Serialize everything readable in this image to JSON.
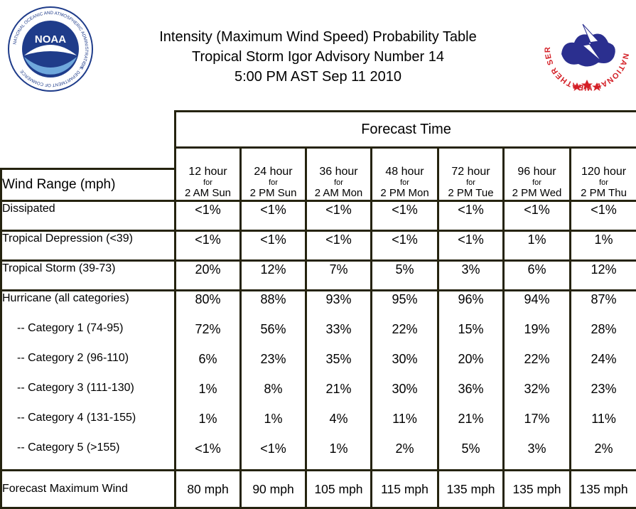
{
  "header": {
    "title_line1": "Intensity (Maximum Wind Speed) Probability Table",
    "title_line2": "Tropical Storm Igor Advisory Number 14",
    "title_line3": "5:00 PM AST Sep 11 2010"
  },
  "logos": {
    "noaa": {
      "text": "NOAA",
      "ring_text": "NATIONAL OCEANIC AND ATMOSPHERIC ADMINISTRATION",
      "bottom_text": "U.S. DEPARTMENT OF COMMERCE"
    },
    "nws": {
      "ring_text": "NATIONAL WEATHER SERVICE"
    }
  },
  "colors": {
    "border": "#25230f",
    "noaa_blue": "#1f3c8a",
    "nws_red": "#d42027",
    "nws_cloud": "#2b2f8f"
  },
  "chart_data": {
    "type": "table",
    "forecast_time_label": "Forecast Time",
    "wind_range_label": "Wind Range (mph)",
    "columns": [
      {
        "hours": "12 hour",
        "for": "for",
        "when": "2 AM Sun"
      },
      {
        "hours": "24 hour",
        "for": "for",
        "when": "2 PM Sun"
      },
      {
        "hours": "36 hour",
        "for": "for",
        "when": "2 AM Mon"
      },
      {
        "hours": "48 hour",
        "for": "for",
        "when": "2 PM Mon"
      },
      {
        "hours": "72 hour",
        "for": "for",
        "when": "2 PM Tue"
      },
      {
        "hours": "96 hour",
        "for": "for",
        "when": "2 PM Wed"
      },
      {
        "hours": "120 hour",
        "for": "for",
        "when": "2 PM Thu"
      }
    ],
    "rows": [
      {
        "label": "Dissipated",
        "values": [
          "<1%",
          "<1%",
          "<1%",
          "<1%",
          "<1%",
          "<1%",
          "<1%"
        ]
      },
      {
        "label": "Tropical Depression (<39)",
        "values": [
          "<1%",
          "<1%",
          "<1%",
          "<1%",
          "<1%",
          "1%",
          "1%"
        ]
      },
      {
        "label": "Tropical Storm (39-73)",
        "values": [
          "20%",
          "12%",
          "7%",
          "5%",
          "3%",
          "6%",
          "12%"
        ]
      }
    ],
    "hurricane_group": [
      {
        "label": "Hurricane (all categories)",
        "values": [
          "80%",
          "88%",
          "93%",
          "95%",
          "96%",
          "94%",
          "87%"
        ]
      },
      {
        "label": "-- Category 1 (74-95)",
        "values": [
          "72%",
          "56%",
          "33%",
          "22%",
          "15%",
          "19%",
          "28%"
        ]
      },
      {
        "label": "-- Category 2 (96-110)",
        "values": [
          "6%",
          "23%",
          "35%",
          "30%",
          "20%",
          "22%",
          "24%"
        ]
      },
      {
        "label": "-- Category 3 (111-130)",
        "values": [
          "1%",
          "8%",
          "21%",
          "30%",
          "36%",
          "32%",
          "23%"
        ]
      },
      {
        "label": "-- Category 4 (131-155)",
        "values": [
          "1%",
          "1%",
          "4%",
          "11%",
          "21%",
          "17%",
          "11%"
        ]
      },
      {
        "label": "-- Category 5 (>155)",
        "values": [
          "<1%",
          "<1%",
          "1%",
          "2%",
          "5%",
          "3%",
          "2%"
        ]
      }
    ],
    "max_wind": {
      "label": "Forecast Maximum Wind",
      "values": [
        "80 mph",
        "90 mph",
        "105 mph",
        "115 mph",
        "135 mph",
        "135 mph",
        "135 mph"
      ]
    }
  }
}
